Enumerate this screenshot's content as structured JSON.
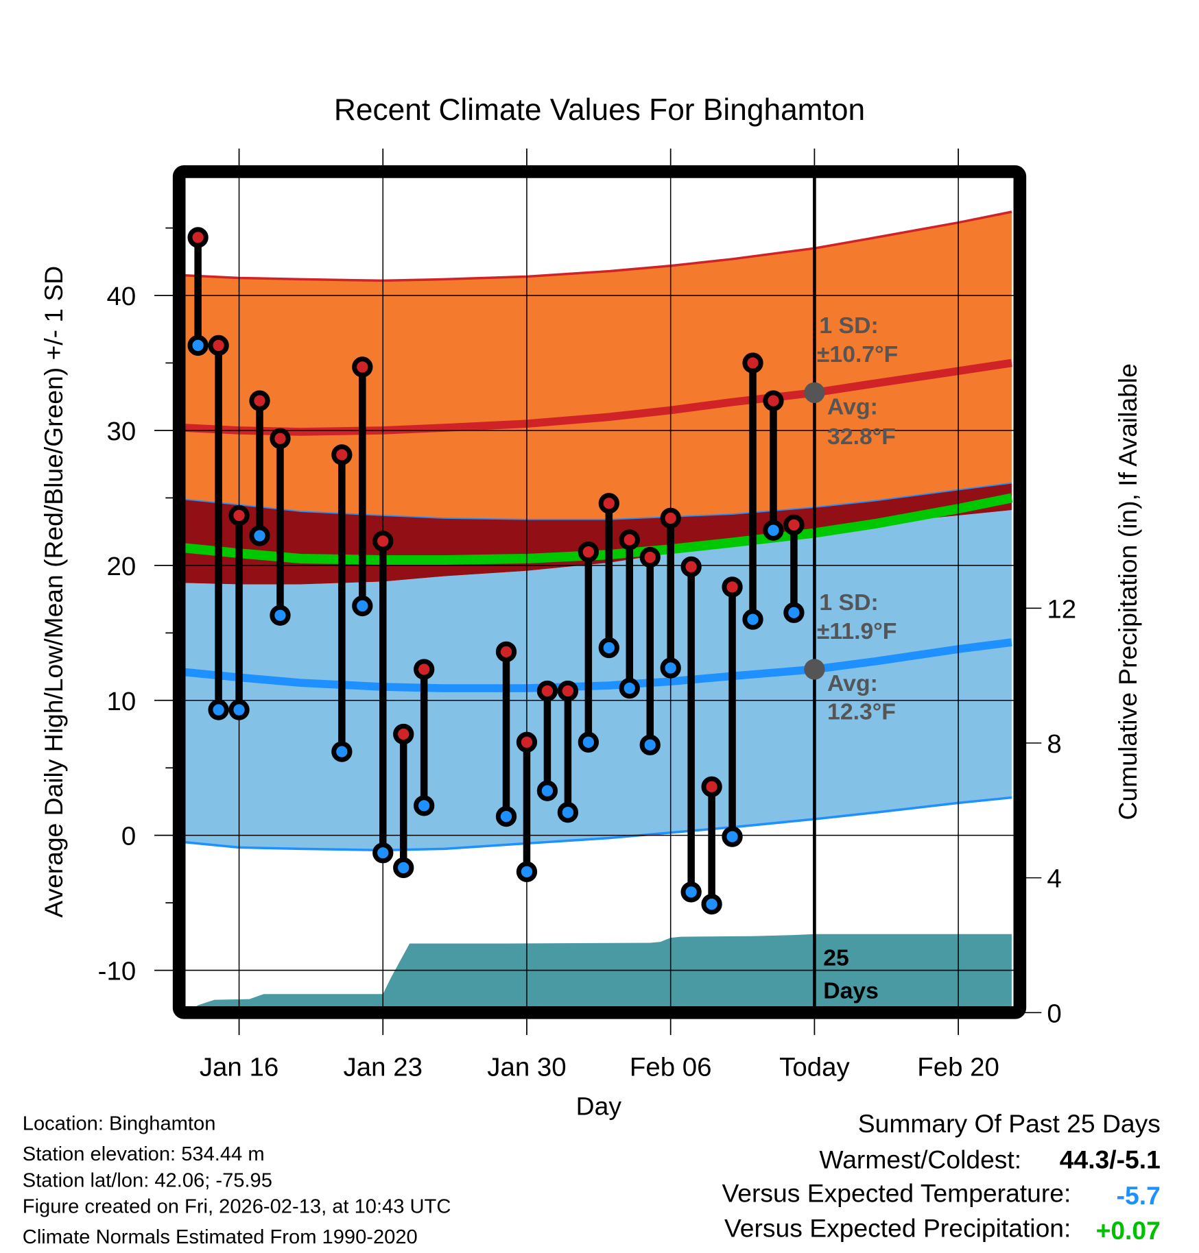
{
  "chart_data": {
    "type": "line",
    "title": "Recent Climate Values For Binghamton",
    "xlabel": "Day",
    "ylabel": "Average Daily High/Low/Mean (Red/Blue/Green) +/- 1 SD",
    "y2label": "Cumulative Precipitation (in), If Available",
    "ylim": [
      -12.7,
      49.5
    ],
    "y2lim": [
      0,
      14.7
    ],
    "xlim_days_from_jan16": [
      -2.7,
      37.6
    ],
    "yticks": [
      -10,
      0,
      10,
      20,
      30,
      40
    ],
    "yminor_step": 5,
    "y2ticks": [
      0,
      4,
      8,
      12
    ],
    "xticks": [
      {
        "label": "Jan 16",
        "day": 0
      },
      {
        "label": "Jan 23",
        "day": 7
      },
      {
        "label": "Jan 30",
        "day": 14
      },
      {
        "label": "Feb 06",
        "day": 21
      },
      {
        "label": "Today",
        "day": 28
      },
      {
        "label": "Feb 20",
        "day": 35
      }
    ],
    "today_day": 28,
    "grid": true,
    "colors": {
      "high_band": "#f47a2d",
      "high_line": "#cf2327",
      "overlap_band": "#920f15",
      "mean_line": "#00c800",
      "low_band": "#83c1e7",
      "low_line": "#1e90ff",
      "precip": "#4a9aa4",
      "high_marker": "#cf2327",
      "low_marker": "#1e90ff",
      "annotation": "#555555"
    },
    "observations": [
      {
        "date": "Jan 14",
        "day": -2,
        "high": 44.3,
        "low": 36.3
      },
      {
        "date": "Jan 15",
        "day": -1,
        "high": 36.3,
        "low": 9.3
      },
      {
        "date": "Jan 16",
        "day": 0,
        "high": 23.7,
        "low": 9.3
      },
      {
        "date": "Jan 17",
        "day": 1,
        "high": 32.2,
        "low": 22.2
      },
      {
        "date": "Jan 18",
        "day": 2,
        "high": 29.4,
        "low": 16.3
      },
      {
        "date": "Jan 21",
        "day": 5,
        "high": 28.2,
        "low": 6.2
      },
      {
        "date": "Jan 22",
        "day": 6,
        "high": 34.7,
        "low": 17.0
      },
      {
        "date": "Jan 23",
        "day": 7,
        "high": 21.8,
        "low": -1.3
      },
      {
        "date": "Jan 24",
        "day": 8,
        "high": 7.5,
        "low": -2.4
      },
      {
        "date": "Jan 25",
        "day": 9,
        "high": 12.3,
        "low": 2.2
      },
      {
        "date": "Jan 29",
        "day": 13,
        "high": 13.6,
        "low": 1.4
      },
      {
        "date": "Jan 30",
        "day": 14,
        "high": 6.9,
        "low": -2.7
      },
      {
        "date": "Jan 31",
        "day": 15,
        "high": 10.7,
        "low": 3.3
      },
      {
        "date": "Feb 01",
        "day": 16,
        "high": 10.7,
        "low": 1.7
      },
      {
        "date": "Feb 02",
        "day": 17,
        "high": 21.0,
        "low": 6.9
      },
      {
        "date": "Feb 03",
        "day": 18,
        "high": 24.6,
        "low": 13.9
      },
      {
        "date": "Feb 04",
        "day": 19,
        "high": 21.9,
        "low": 10.9
      },
      {
        "date": "Feb 05",
        "day": 20,
        "high": 20.6,
        "low": 6.7
      },
      {
        "date": "Feb 06",
        "day": 21,
        "high": 23.5,
        "low": 12.4
      },
      {
        "date": "Feb 07",
        "day": 22,
        "high": 19.9,
        "low": -4.2
      },
      {
        "date": "Feb 08",
        "day": 23,
        "high": 3.6,
        "low": -5.1
      },
      {
        "date": "Feb 09",
        "day": 24,
        "high": 18.4,
        "low": -0.1
      },
      {
        "date": "Feb 10",
        "day": 25,
        "high": 35.0,
        "low": 16.0
      },
      {
        "date": "Feb 11",
        "day": 26,
        "high": 32.2,
        "low": 22.6
      },
      {
        "date": "Feb 12",
        "day": 27,
        "high": 23.0,
        "low": 16.5
      }
    ],
    "normals": {
      "day": [
        -2.7,
        0,
        3,
        7,
        10,
        14,
        18,
        21,
        24,
        28,
        31,
        35,
        37.6
      ],
      "high_avg": [
        30.2,
        30.0,
        29.9,
        30.0,
        30.2,
        30.5,
        31.0,
        31.5,
        32.1,
        32.8,
        33.5,
        34.4,
        35.0
      ],
      "high_sd": 10.7,
      "high_upper": [
        41.5,
        41.3,
        41.2,
        41.1,
        41.2,
        41.4,
        41.8,
        42.2,
        42.7,
        43.5,
        44.3,
        45.4,
        46.2
      ],
      "high_lower": [
        24.9,
        24.5,
        24.0,
        23.7,
        23.5,
        23.4,
        23.4,
        23.6,
        23.8,
        24.3,
        24.8,
        25.6,
        26.1
      ],
      "mean": [
        21.3,
        20.9,
        20.5,
        20.4,
        20.4,
        20.5,
        20.8,
        21.2,
        21.7,
        22.4,
        23.1,
        24.2,
        25.0
      ],
      "low_avg": [
        12.1,
        11.7,
        11.3,
        11.0,
        10.9,
        10.9,
        11.1,
        11.4,
        11.8,
        12.3,
        12.9,
        13.8,
        14.3
      ],
      "low_sd": 11.9,
      "low_upper": [
        18.7,
        18.6,
        18.6,
        18.8,
        19.2,
        19.6,
        20.2,
        20.9,
        21.6,
        22.5,
        23.1,
        23.7,
        24.1
      ],
      "low_lower": [
        -0.5,
        -0.9,
        -1.0,
        -1.1,
        -1.0,
        -0.6,
        -0.2,
        0.2,
        0.6,
        1.2,
        1.7,
        2.4,
        2.8
      ]
    },
    "precipitation": {
      "day": [
        -2.5,
        -2.0,
        -1.2,
        0.5,
        1.2,
        2.0,
        7.0,
        7.4,
        8.3,
        13.0,
        20.0,
        20.5,
        21.0,
        21.5,
        25.0,
        27.0,
        28.0,
        37.6
      ],
      "cumulative_in": [
        0.0,
        0.22,
        0.38,
        0.4,
        0.55,
        0.55,
        0.55,
        1.05,
        2.05,
        2.05,
        2.07,
        2.1,
        2.22,
        2.25,
        2.27,
        2.3,
        2.33,
        2.33
      ]
    },
    "annotations": {
      "high_sd_label": "1 SD:",
      "high_sd_value": "±10.7°F",
      "high_avg_label": "Avg:",
      "high_avg_value": "32.8°F",
      "high_avg_today": 32.8,
      "low_sd_label": "1 SD:",
      "low_sd_value": "±11.9°F",
      "low_avg_label": "Avg:",
      "low_avg_value": "12.3°F",
      "low_avg_today": 12.3,
      "days_count": "25",
      "days_label": "Days"
    }
  },
  "info": {
    "location": "Location: Binghamton",
    "elevation": "Station elevation: 534.44 m",
    "latlon": "Station lat/lon: 42.06; -75.95",
    "created": "Figure created on Fri, 2026-02-13, at 10:43 UTC",
    "normals": "Climate Normals Estimated From 1990-2020"
  },
  "summary": {
    "title": "Summary Of Past 25 Days",
    "warmest_coldest_label": "Warmest/Coldest:",
    "warmest_coldest_value": "44.3/-5.1",
    "temp_label": "Versus Expected Temperature:",
    "temp_value": "-5.7",
    "temp_color": "#1e90ff",
    "precip_label": "Versus Expected Precipitation:",
    "precip_value": "+0.07",
    "precip_color": "#00c000"
  }
}
